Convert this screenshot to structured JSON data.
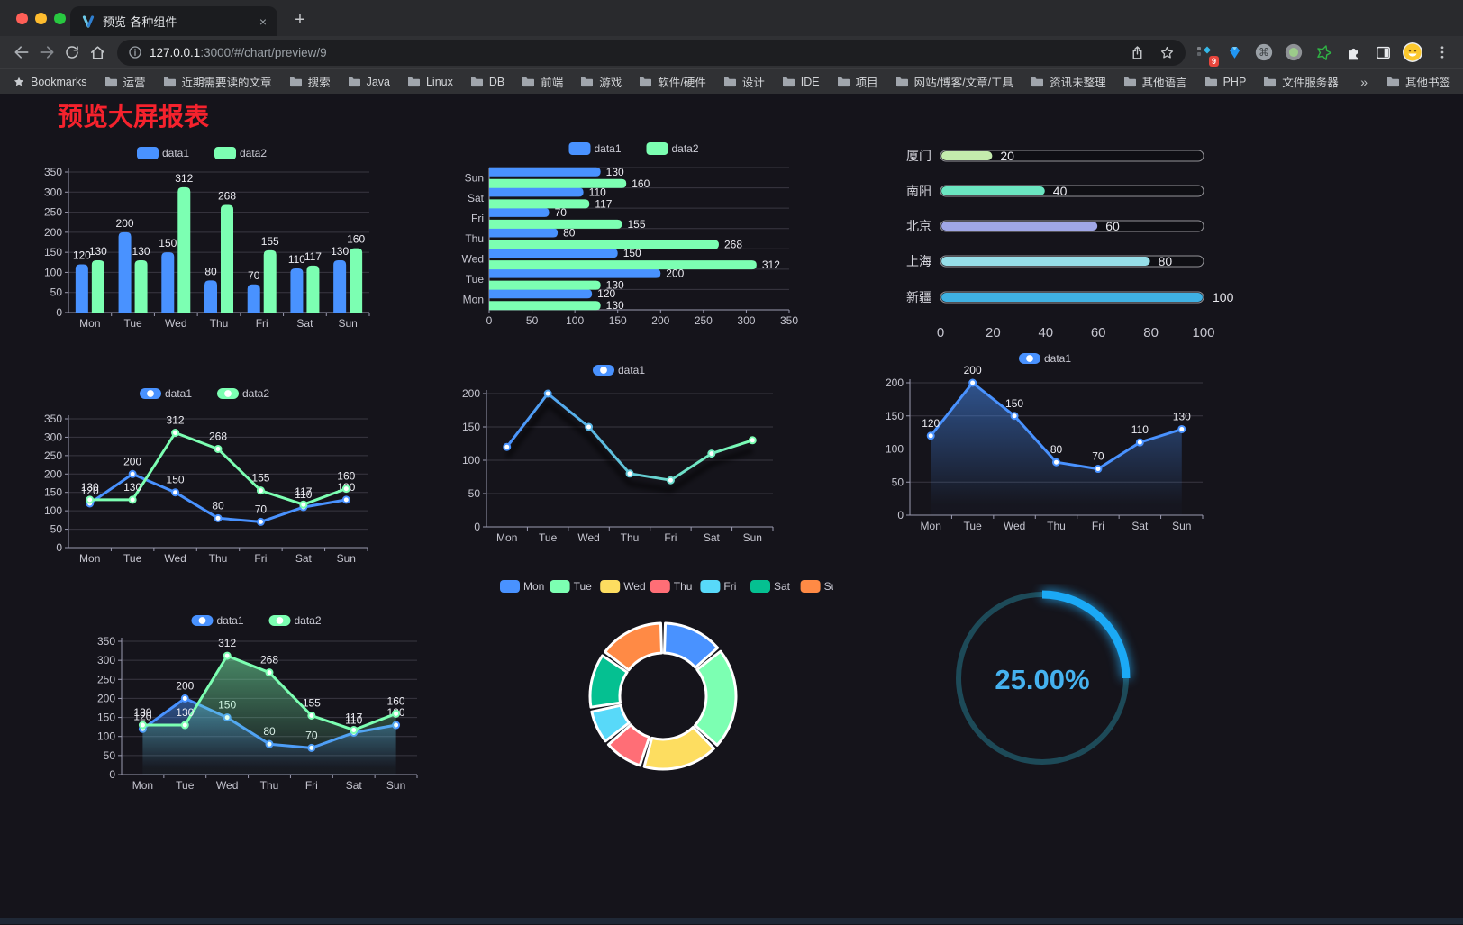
{
  "browser": {
    "window_controls": {
      "close": "#ff5f57",
      "minimize": "#febc2e",
      "zoom": "#28c840"
    },
    "tab": {
      "title": "预览-各种组件",
      "close_label": "×",
      "new_tab_label": "+"
    },
    "address": {
      "host": "127.0.0.1",
      "path": ":3000/#/chart/preview/9"
    },
    "extensions_badge": "9",
    "bookmarks": {
      "label": "Bookmarks",
      "folders": [
        "运营",
        "近期需要读的文章",
        "搜索",
        "Java",
        "Linux",
        "DB",
        "前端",
        "游戏",
        "软件/硬件",
        "设计",
        "IDE",
        "项目",
        "网站/博客/文章/工具",
        "资讯未整理",
        "其他语言",
        "PHP",
        "文件服务器"
      ],
      "overflow_chevron": "»",
      "other_bookmarks": "其他书签"
    }
  },
  "page": {
    "title": "预览大屏报表",
    "title_color": "#f5222d",
    "background": "#15141b"
  },
  "chart_data": [
    {
      "type": "bar",
      "categories": [
        "Mon",
        "Tue",
        "Wed",
        "Thu",
        "Fri",
        "Sat",
        "Sun"
      ],
      "series": [
        {
          "name": "data1",
          "color": "#4992ff",
          "values": [
            120,
            200,
            150,
            80,
            70,
            110,
            130
          ]
        },
        {
          "name": "data2",
          "color": "#7cffb2",
          "values": [
            130,
            130,
            312,
            268,
            155,
            117,
            160
          ]
        }
      ],
      "ylim": [
        0,
        350
      ],
      "ystep": 50,
      "legend_position": "top",
      "value_labels": true
    },
    {
      "type": "bar-horizontal",
      "categories": [
        "Mon",
        "Tue",
        "Wed",
        "Thu",
        "Fri",
        "Sat",
        "Sun"
      ],
      "series": [
        {
          "name": "data1",
          "color": "#4992ff",
          "values": [
            120,
            200,
            150,
            80,
            70,
            110,
            130
          ]
        },
        {
          "name": "data2",
          "color": "#7cffb2",
          "values": [
            130,
            130,
            312,
            268,
            155,
            117,
            160
          ]
        }
      ],
      "xlim": [
        0,
        350
      ],
      "xstep": 50,
      "legend_position": "top",
      "value_labels": true
    },
    {
      "type": "progress-bars",
      "max": 100,
      "xticks": [
        0,
        20,
        40,
        60,
        80,
        100
      ],
      "rows": [
        {
          "label": "厦门",
          "value": 20,
          "color": "#c4ebad"
        },
        {
          "label": "南阳",
          "value": 40,
          "color": "#6be6c1"
        },
        {
          "label": "北京",
          "value": 60,
          "color": "#a0a7e6"
        },
        {
          "label": "上海",
          "value": 80,
          "color": "#96dee8"
        },
        {
          "label": "新疆",
          "value": 100,
          "color": "#3fb1e3"
        }
      ]
    },
    {
      "type": "line",
      "categories": [
        "Mon",
        "Tue",
        "Wed",
        "Thu",
        "Fri",
        "Sat",
        "Sun"
      ],
      "series": [
        {
          "name": "data1",
          "color": "#4992ff",
          "values": [
            120,
            200,
            150,
            80,
            70,
            110,
            130
          ]
        },
        {
          "name": "data2",
          "color": "#7cffb2",
          "values": [
            130,
            130,
            312,
            268,
            155,
            117,
            160
          ]
        }
      ],
      "ylim": [
        0,
        350
      ],
      "ystep": 50,
      "legend_position": "top",
      "value_labels": true
    },
    {
      "type": "line",
      "categories": [
        "Mon",
        "Tue",
        "Wed",
        "Thu",
        "Fri",
        "Sat",
        "Sun"
      ],
      "series": [
        {
          "name": "data1",
          "gradient": [
            "#4992ff",
            "#7cffb2"
          ],
          "values": [
            120,
            200,
            150,
            80,
            70,
            110,
            130
          ]
        }
      ],
      "ylim": [
        0,
        200
      ],
      "ystep": 50,
      "legend_position": "top",
      "value_labels": false,
      "shadow": true
    },
    {
      "type": "area",
      "categories": [
        "Mon",
        "Tue",
        "Wed",
        "Thu",
        "Fri",
        "Sat",
        "Sun"
      ],
      "series": [
        {
          "name": "data1",
          "color": "#4992ff",
          "values": [
            120,
            200,
            150,
            80,
            70,
            110,
            130
          ]
        }
      ],
      "ylim": [
        0,
        200
      ],
      "ystep": 50,
      "legend_position": "top",
      "value_labels": true
    },
    {
      "type": "area",
      "categories": [
        "Mon",
        "Tue",
        "Wed",
        "Thu",
        "Fri",
        "Sat",
        "Sun"
      ],
      "series": [
        {
          "name": "data1",
          "color": "#4992ff",
          "values": [
            120,
            200,
            150,
            80,
            70,
            110,
            130
          ]
        },
        {
          "name": "data2",
          "color": "#7cffb2",
          "values": [
            130,
            130,
            312,
            268,
            155,
            117,
            160
          ]
        }
      ],
      "ylim": [
        0,
        350
      ],
      "ystep": 50,
      "legend_position": "top",
      "value_labels": true
    },
    {
      "type": "donut",
      "legend_position": "top",
      "categories": [
        "Mon",
        "Tue",
        "Wed",
        "Thu",
        "Fri",
        "Sat",
        "Sun"
      ],
      "values": [
        120,
        200,
        150,
        80,
        70,
        110,
        130
      ],
      "colors": [
        "#4992ff",
        "#7cffb2",
        "#fddd60",
        "#ff6e76",
        "#58d9f9",
        "#05c091",
        "#ff8a45"
      ]
    },
    {
      "type": "gauge",
      "value": 25,
      "label": "25.00%",
      "arc_color": "#1ba9f5",
      "track_color": "#1d4a58",
      "text_color": "#45b2ef"
    }
  ]
}
